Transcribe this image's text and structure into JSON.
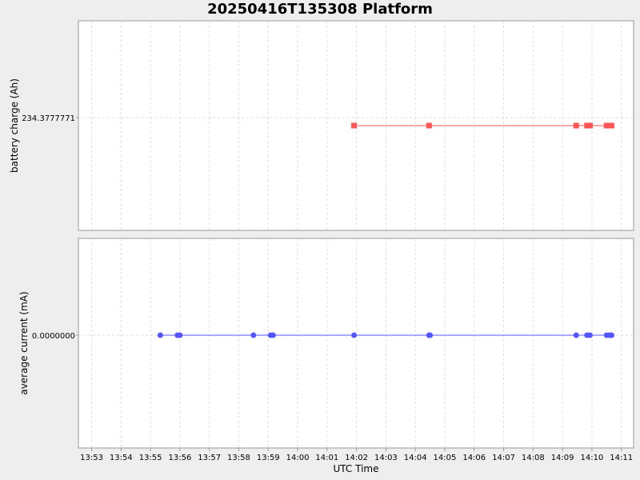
{
  "chart_data": [
    {
      "type": "scatter",
      "title": "20250416T135308 Platform",
      "xlabel": "UTC Time",
      "ylabel": "battery charge (Ah)",
      "y_tick_labels": [
        "234.3777771"
      ],
      "series": [
        {
          "name": "",
          "color": "#ff5555",
          "marker": "square",
          "x": [
            "14:01:55",
            "14:04:28",
            "14:09:28",
            "14:09:50",
            "14:09:56",
            "14:10:30",
            "14:10:36",
            "14:10:40"
          ],
          "y": [
            234.3777771,
            234.3777771,
            234.3777771,
            234.3777771,
            234.3777771,
            234.3777771,
            234.3777771,
            234.3777771
          ]
        }
      ]
    },
    {
      "type": "scatter",
      "xlabel": "UTC Time",
      "ylabel": "average current (mA)",
      "y_tick_labels": [
        "0.0000000"
      ],
      "series": [
        {
          "name": "",
          "color": "#5555ff",
          "marker": "circle",
          "x": [
            "13:55:20",
            "13:55:55",
            "13:56:00",
            "13:58:30",
            "13:59:05",
            "13:59:10",
            "14:01:55",
            "14:04:28",
            "14:04:30",
            "14:09:28",
            "14:09:50",
            "14:09:56",
            "14:10:30",
            "14:10:36",
            "14:10:40"
          ],
          "y": [
            0,
            0,
            0,
            0,
            0,
            0,
            0,
            0,
            0,
            0,
            0,
            0,
            0,
            0,
            0
          ]
        }
      ]
    }
  ],
  "x_axis": {
    "label": "UTC Time",
    "range": [
      "13:52:33",
      "14:11:25"
    ],
    "ticks": [
      "13:53",
      "13:54",
      "13:55",
      "13:56",
      "13:57",
      "13:58",
      "13:59",
      "14:00",
      "14:01",
      "14:02",
      "14:03",
      "14:04",
      "14:05",
      "14:06",
      "14:07",
      "14:08",
      "14:09",
      "14:10",
      "14:11"
    ]
  },
  "grid": true
}
